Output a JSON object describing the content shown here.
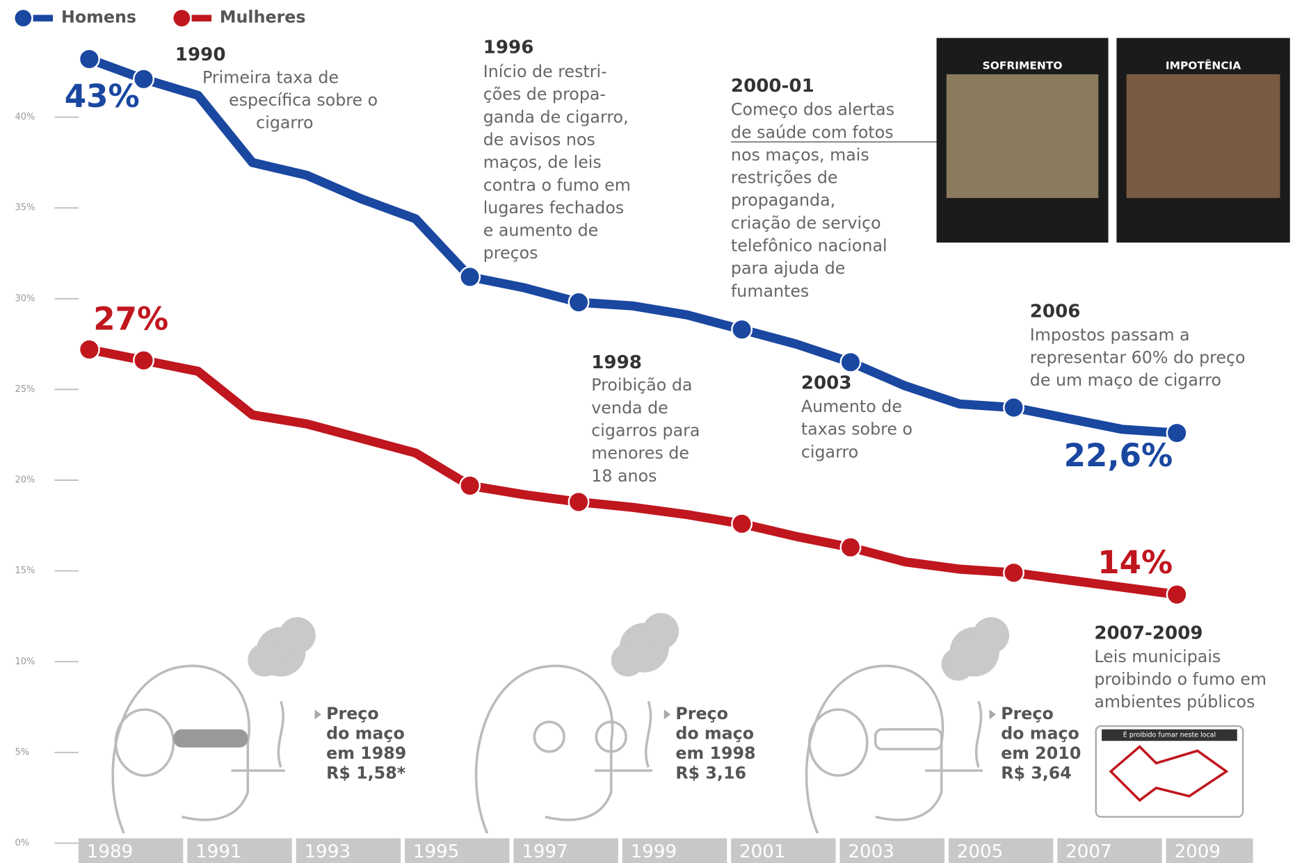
{
  "chart_data": {
    "type": "line",
    "x": [
      1989,
      1990,
      1991,
      1992,
      1993,
      1994,
      1995,
      1996,
      1997,
      1998,
      1999,
      2000,
      2001,
      2002,
      2003,
      2004,
      2005,
      2006,
      2007,
      2008,
      2009
    ],
    "series": [
      {
        "name": "Homens",
        "color": "#1a47a0",
        "values": [
          43.2,
          42.1,
          41.2,
          37.5,
          36.8,
          35.5,
          34.4,
          31.2,
          30.6,
          29.8,
          29.6,
          29.1,
          28.3,
          27.5,
          26.5,
          25.2,
          24.2,
          24.0,
          23.4,
          22.8,
          22.6
        ],
        "value_labels": [
          "43%",
          null,
          null,
          null,
          null,
          null,
          null,
          null,
          null,
          null,
          null,
          null,
          null,
          null,
          null,
          null,
          null,
          null,
          null,
          null,
          "22,6%"
        ]
      },
      {
        "name": "Mulheres",
        "color": "#c0161e",
        "values": [
          27.2,
          26.6,
          26.0,
          23.6,
          23.1,
          22.3,
          21.5,
          19.7,
          19.2,
          18.8,
          18.5,
          18.1,
          17.6,
          16.9,
          16.3,
          15.5,
          15.1,
          14.9,
          14.5,
          14.1,
          13.7
        ],
        "value_labels": [
          "27%",
          null,
          null,
          null,
          null,
          null,
          null,
          null,
          null,
          null,
          null,
          null,
          null,
          null,
          null,
          null,
          null,
          null,
          null,
          null,
          "14%"
        ]
      }
    ],
    "markers": [
      1989,
      1990,
      1996,
      1998,
      2001,
      2003,
      2006,
      2009
    ],
    "ylim": [
      0,
      45
    ],
    "yticks": [
      {
        "value": 0,
        "label": "0%"
      },
      {
        "value": 5,
        "label": "5%"
      },
      {
        "value": 10,
        "label": "10%"
      },
      {
        "value": 15,
        "label": "15%"
      },
      {
        "value": 20,
        "label": "20%"
      },
      {
        "value": 25,
        "label": "25%"
      },
      {
        "value": 30,
        "label": "30%"
      },
      {
        "value": 35,
        "label": "35%"
      },
      {
        "value": 40,
        "label": "40%"
      }
    ],
    "xlim": [
      1988.8,
      2010.4
    ],
    "xticks": [
      1989,
      1991,
      1993,
      1995,
      1997,
      1999,
      2001,
      2003,
      2005,
      2007,
      2009
    ],
    "annotations": [
      {
        "title": "1990",
        "lines": [
          "Primeira taxa de",
          "específica sobre o",
          "cigarro"
        ]
      },
      {
        "title": "1996",
        "lines": [
          "Início de restri-",
          "ções de propa-",
          "ganda de cigarro,",
          "de avisos nos",
          "maços, de leis",
          "contra o fumo em",
          "lugares fechados",
          "e aumento de",
          "preços"
        ]
      },
      {
        "title": "2000-01",
        "lines": [
          "Começo dos alertas",
          "de saúde com fotos",
          "nos maços, mais",
          "restrições de",
          "propaganda,",
          "criação de serviço",
          "telefônico nacional",
          "para ajuda de",
          "fumantes"
        ]
      },
      {
        "title": "2006",
        "lines": [
          "Impostos passam a",
          "representar 60% do preço",
          "de um maço de cigarro"
        ]
      },
      {
        "title": "1998",
        "lines": [
          "Proibição da",
          "venda de",
          "cigarros para",
          "menores de",
          "18 anos"
        ]
      },
      {
        "title": "2003",
        "lines": [
          "Aumento de",
          "taxas sobre o",
          "cigarro"
        ]
      },
      {
        "title": "2007-2009",
        "lines": [
          "Leis municipais",
          "proibindo o fumo em",
          "ambientes públicos"
        ]
      }
    ],
    "prices": [
      [
        "Preço",
        "do maço",
        "em 1989",
        "R$ 1,58*"
      ],
      [
        "Preço",
        "do maço",
        "em 1998",
        "R$ 3,16"
      ],
      [
        "Preço",
        "do maço",
        "em 2010",
        "R$ 3,64"
      ]
    ],
    "photos": [
      "SOFRIMENTO",
      "IMPOTÊNCIA"
    ],
    "sign": "É proibido fumar neste local"
  }
}
